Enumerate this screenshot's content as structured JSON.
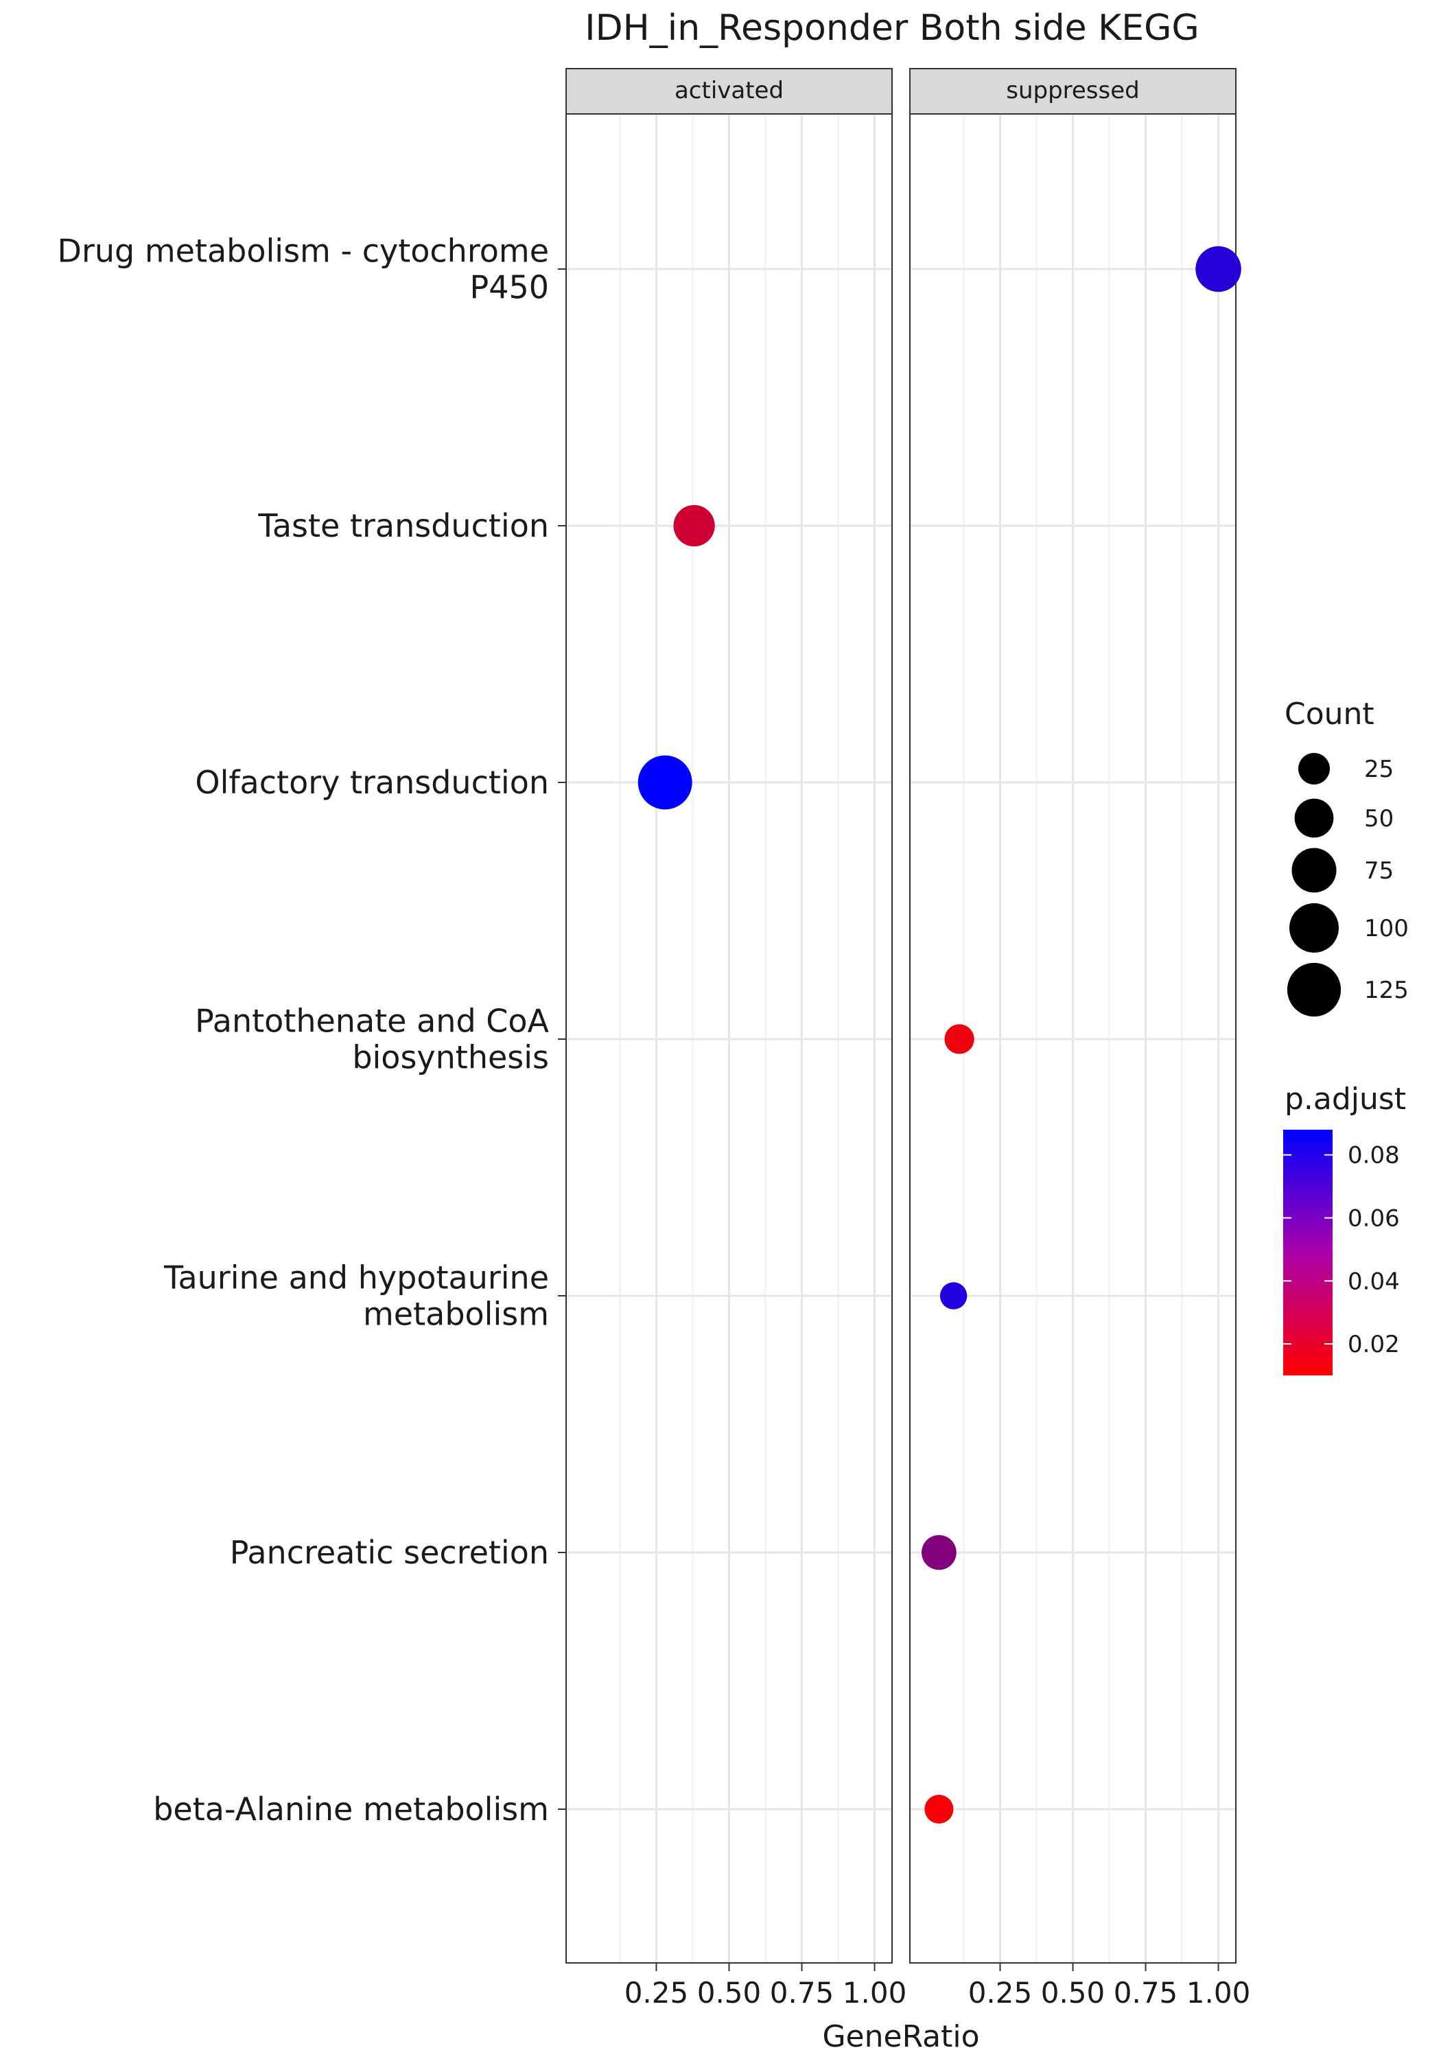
{
  "chart_data": {
    "type": "scatter",
    "title": "IDH_in_Responder Both side KEGG",
    "xlabel": "GeneRatio",
    "ylabel": "",
    "xlim": [
      0.0,
      1.0
    ],
    "x_ticks": [
      0.25,
      0.5,
      0.75,
      1.0
    ],
    "x_tick_labels": [
      "0.25",
      "0.50",
      "0.75",
      "1.00"
    ],
    "grid": true,
    "panels": [
      "activated",
      "suppressed"
    ],
    "categories": [
      [
        "Drug metabolism - cytochrome",
        "P450"
      ],
      [
        "Taste transduction"
      ],
      [
        "Olfactory transduction"
      ],
      [
        "Pantothenate and CoA",
        "biosynthesis"
      ],
      [
        "Taurine and hypotaurine",
        "metabolism"
      ],
      [
        "Pancreatic secretion"
      ],
      [
        "beta-Alanine metabolism"
      ]
    ],
    "points": [
      {
        "panel": "suppressed",
        "category": 0,
        "x": 1.0,
        "count": 80,
        "p_adjust": 0.076
      },
      {
        "panel": "activated",
        "category": 1,
        "x": 0.38,
        "count": 60,
        "p_adjust": 0.025
      },
      {
        "panel": "activated",
        "category": 2,
        "x": 0.28,
        "count": 128,
        "p_adjust": 0.088
      },
      {
        "panel": "suppressed",
        "category": 3,
        "x": 0.11,
        "count": 20,
        "p_adjust": 0.015
      },
      {
        "panel": "suppressed",
        "category": 4,
        "x": 0.09,
        "count": 14,
        "p_adjust": 0.078
      },
      {
        "panel": "suppressed",
        "category": 5,
        "x": 0.04,
        "count": 35,
        "p_adjust": 0.048
      },
      {
        "panel": "suppressed",
        "category": 6,
        "x": 0.04,
        "count": 18,
        "p_adjust": 0.012
      }
    ],
    "legend_placement": "right",
    "size_legend": {
      "title": "Count",
      "breaks": [
        25,
        50,
        75,
        100,
        125
      ],
      "labels": [
        "25",
        "50",
        "75",
        "100",
        "125"
      ]
    },
    "color_legend": {
      "title": "p.adjust",
      "range": [
        0.01,
        0.088
      ],
      "low_color": "#ff0000",
      "high_color": "#0000ff",
      "breaks": [
        0.08,
        0.06,
        0.04,
        0.02
      ],
      "labels": [
        "0.08",
        "0.06",
        "0.04",
        "0.02"
      ]
    }
  }
}
